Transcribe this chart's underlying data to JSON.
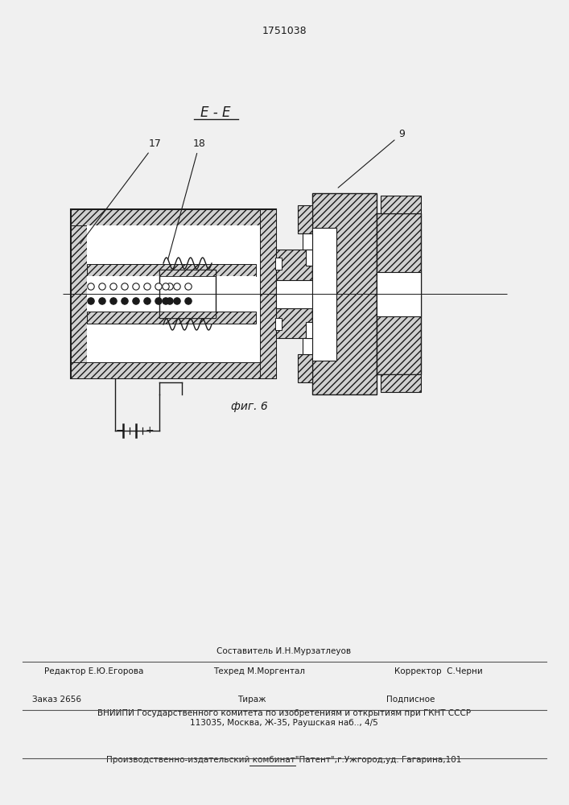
{
  "title": "1751038",
  "section_label": "E - E",
  "fig_label": "фиг. 6",
  "label_17": "17",
  "label_18": "18",
  "label_9": "9",
  "bg_color": "#f0f0f0",
  "line_color": "#1a1a1a",
  "footer_line1": "Составитель И.Н.Мурзатлеуов",
  "footer_editor": "Редактор Е.Ю.Егорова",
  "footer_techred": "Техред М.Моргентал",
  "footer_corrector": "Корректор  С.Черни",
  "footer_order": "Заказ 2656",
  "footer_tirazh": "Тираж",
  "footer_podpisnoe": "Подписное",
  "footer_vniipи": "ВНИИПИ Государственного комитета по изобретениям и открытиям при ГКНТ СССР",
  "footer_address": "113035, Москва, Ж-35, Раушская наб.., 4/5",
  "footer_publisher": "Производственно-издательский комбинат\"Патент\",г.Ужгород,уд. Гагарина,101"
}
